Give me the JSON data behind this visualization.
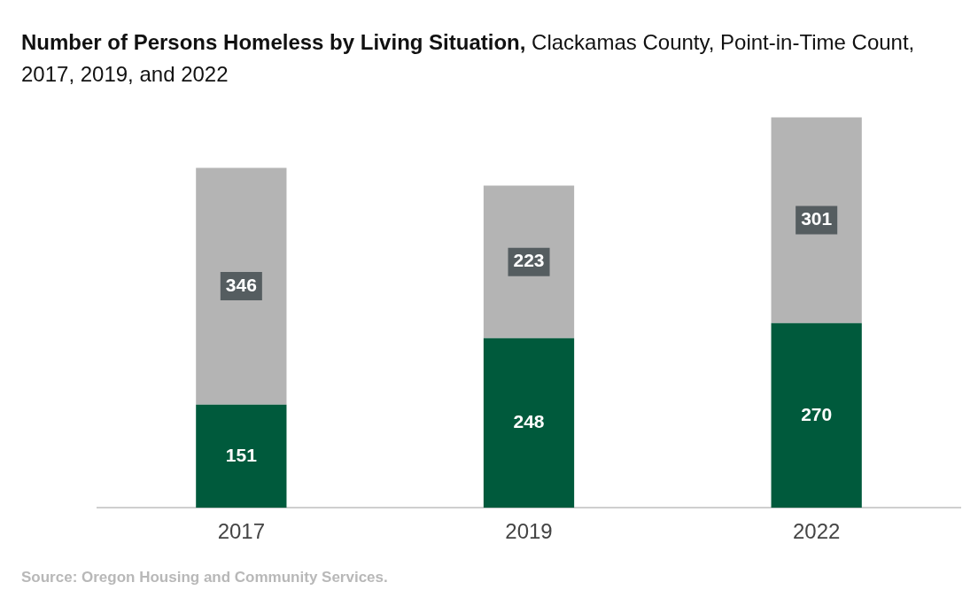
{
  "chart_data": {
    "type": "bar",
    "title": "Number of Persons Homeless by Living Situation,",
    "subtitle": "Clackamas County, Point-in-Time Count, 2017, 2019, and 2022",
    "categories": [
      "2017",
      "2019",
      "2022"
    ],
    "series": [
      {
        "color": "#005a3c",
        "values": [
          151,
          248,
          270
        ]
      },
      {
        "color": "#b4b4b4",
        "values": [
          346,
          223,
          301
        ]
      }
    ],
    "stacked": true,
    "data_labels": true,
    "grid": false,
    "legend": false,
    "tick_labels": "x",
    "annotations": [
      "Source: Oregon Housing and Community Services."
    ]
  }
}
